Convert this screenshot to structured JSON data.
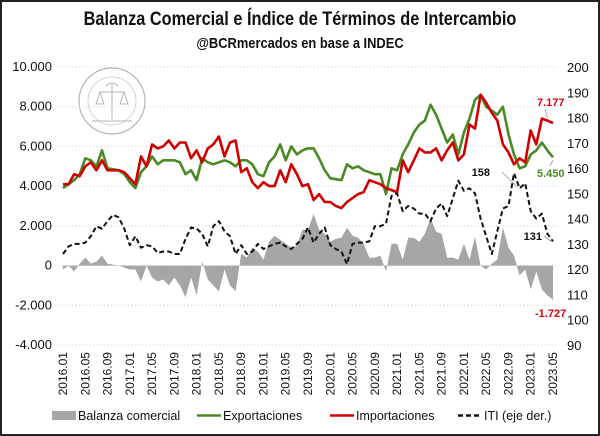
{
  "chart_data": {
    "type": "line",
    "title": "Balanza Comercial e Índice de Términos de Intercambio",
    "subtitle": "@BCRmercados en base a INDEC",
    "logo_text": "BOLSA DE COMERCIO DE ROSARIO",
    "start_month": "2016.01",
    "end_month": "2023.05",
    "x_tick_labels": [
      "2016.01",
      "2016.05",
      "2016.09",
      "2017.01",
      "2017.05",
      "2017.09",
      "2018.01",
      "2018.05",
      "2018.09",
      "2019.01",
      "2019.05",
      "2019.09",
      "2020.01",
      "2020.05",
      "2020.09",
      "2021.01",
      "2021.05",
      "2021.09",
      "2022.01",
      "2022.05",
      "2022.09",
      "2023.01",
      "2023.05"
    ],
    "y_left": {
      "range": [
        -4000,
        10000
      ],
      "ticks": [
        10000,
        8000,
        6000,
        4000,
        2000,
        0,
        -2000,
        -4000
      ],
      "tick_labels": [
        "10.000",
        "8.000",
        "6.000",
        "4.000",
        "2.000",
        "0",
        "-2.000",
        "-4.000"
      ],
      "negative_color": "#e0000a"
    },
    "y_right": {
      "range": [
        90,
        200
      ],
      "ticks": [
        200,
        190,
        180,
        170,
        160,
        150,
        140,
        130,
        120,
        110,
        100,
        90
      ],
      "tick_labels": [
        "200",
        "190",
        "180",
        "170",
        "160",
        "150",
        "140",
        "130",
        "120",
        "110",
        "100",
        "90"
      ]
    },
    "grid": true,
    "legend_position": "bottom",
    "series": [
      {
        "name": "Balanza comercial",
        "type": "area",
        "axis": "left",
        "color": "#a6a6a6",
        "values": [
          -200,
          0,
          -300,
          100,
          400,
          100,
          200,
          500,
          100,
          50,
          0,
          -100,
          -200,
          -200,
          -800,
          0,
          -600,
          -800,
          -700,
          -1000,
          -600,
          -1000,
          -1600,
          -600,
          -1500,
          200,
          -700,
          -1000,
          -1300,
          -200,
          -1000,
          -1300,
          600,
          400,
          900,
          700,
          300,
          1200,
          1500,
          1300,
          1100,
          900,
          1000,
          1800,
          1800,
          2600,
          1800,
          1600,
          1200,
          1350,
          1400,
          1900,
          1500,
          1400,
          1100,
          400,
          400,
          500,
          -300,
          1100,
          1100,
          300,
          1400,
          1400,
          1200,
          1600,
          2400,
          1700,
          1600,
          400,
          400,
          300,
          1100,
          300,
          1450,
          0,
          -200,
          100,
          300,
          1900,
          900,
          500,
          -500,
          -200,
          -1200,
          -300,
          -1200,
          -1500,
          -1727
        ]
      },
      {
        "name": "Exportaciones",
        "type": "line",
        "axis": "left",
        "color": "#4a8a24",
        "values": [
          3900,
          4100,
          4300,
          4600,
          5400,
          5300,
          5000,
          5800,
          4900,
          4850,
          4800,
          4600,
          4200,
          3900,
          4700,
          5000,
          5500,
          5100,
          5300,
          5300,
          5300,
          5200,
          4600,
          4800,
          4300,
          5400,
          5200,
          5100,
          5200,
          5300,
          5200,
          5000,
          5300,
          5300,
          5100,
          4600,
          4500,
          5200,
          5500,
          6100,
          5300,
          6000,
          5600,
          5800,
          5900,
          5900,
          5400,
          4800,
          4400,
          4350,
          4300,
          5100,
          4900,
          5000,
          4800,
          4700,
          4600,
          4600,
          3600,
          4900,
          4800,
          5600,
          6100,
          6700,
          7100,
          7300,
          8100,
          7600,
          6900,
          6200,
          6600,
          5600,
          6700,
          7400,
          8350,
          8600,
          8000,
          7800,
          7600,
          8000,
          6600,
          5600,
          4900,
          5000,
          5600,
          5800,
          6200,
          5800,
          5450
        ]
      },
      {
        "name": "Importaciones",
        "type": "line",
        "axis": "left",
        "color": "#d00000",
        "values": [
          4100,
          4100,
          4600,
          4500,
          5000,
          5200,
          4800,
          5300,
          4800,
          4800,
          4800,
          4700,
          4400,
          4100,
          5500,
          5000,
          6100,
          5900,
          6000,
          6300,
          5900,
          6200,
          6200,
          5400,
          5800,
          5200,
          5900,
          6100,
          6500,
          5500,
          6200,
          6300,
          4700,
          4900,
          4200,
          3900,
          4200,
          4000,
          4000,
          4800,
          4200,
          5100,
          4600,
          4000,
          4100,
          3300,
          3600,
          3200,
          3200,
          3000,
          2900,
          3200,
          3400,
          3600,
          3700,
          4300,
          4200,
          4100,
          3900,
          3800,
          3700,
          5300,
          4700,
          5300,
          5900,
          5700,
          5700,
          5900,
          5300,
          5800,
          6200,
          5300,
          5600,
          7100,
          6900,
          8600,
          8200,
          7700,
          7300,
          6100,
          5700,
          5100,
          5400,
          5200,
          6800,
          6100,
          7400,
          7300,
          7177
        ]
      },
      {
        "name": "ITI (eje der.)",
        "type": "line",
        "axis": "right",
        "color": "#111111",
        "dashed": true,
        "values": [
          126,
          129,
          130,
          130,
          130.5,
          133,
          137,
          136,
          139,
          141.5,
          140.5,
          136,
          129.5,
          133,
          128.5,
          129.5,
          129,
          126.5,
          127,
          127,
          126,
          126,
          132,
          136.5,
          136,
          134,
          129,
          137,
          139,
          135,
          133,
          126,
          129.5,
          126,
          127,
          130,
          128,
          129,
          130,
          130.5,
          129,
          128,
          130,
          132,
          136.5,
          130.5,
          134,
          136.5,
          129.5,
          128,
          127,
          122,
          130,
          130.5,
          130.5,
          131,
          137,
          137,
          138,
          149,
          150,
          143,
          145,
          144,
          142,
          142,
          139,
          144,
          146,
          141,
          148,
          155,
          151,
          152,
          150,
          140,
          133,
          126,
          135,
          144,
          145,
          158,
          152,
          154,
          143,
          140,
          142,
          134,
          131
        ]
      }
    ],
    "annotations": [
      {
        "text": "7.177",
        "series": "Importaciones",
        "color": "#e0000a"
      },
      {
        "text": "5.450",
        "series": "Exportaciones",
        "color": "#4a8a24"
      },
      {
        "text": "-1.727",
        "series": "Balanza comercial",
        "color": "#e0000a"
      },
      {
        "text": "158",
        "series": "ITI (eje der.)",
        "color": "#111111"
      },
      {
        "text": "131",
        "series": "ITI (eje der.)",
        "color": "#111111"
      }
    ]
  }
}
